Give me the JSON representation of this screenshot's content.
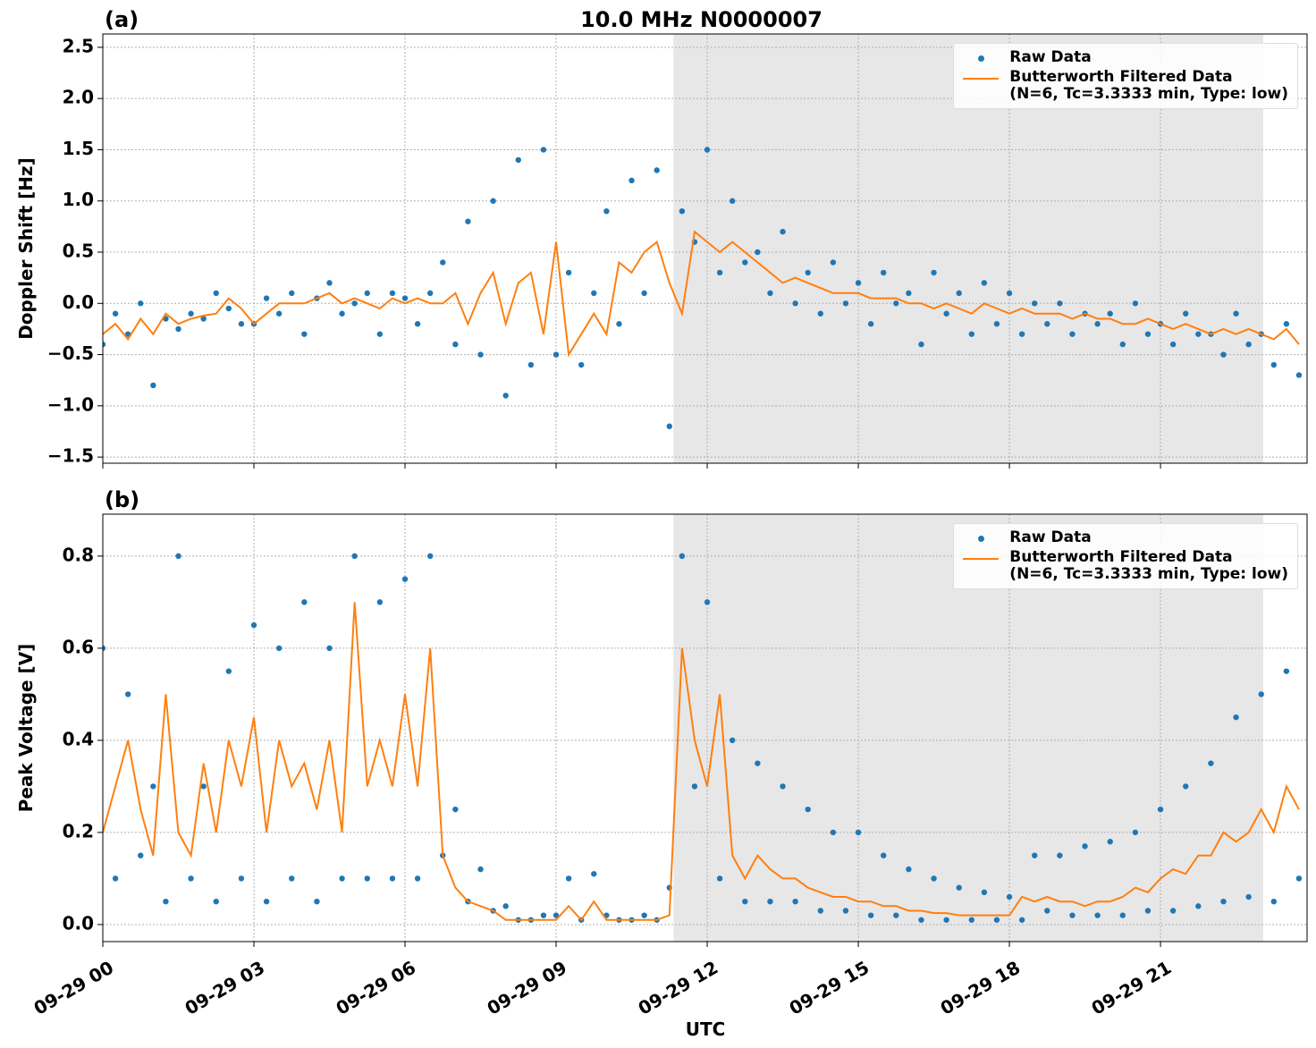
{
  "chart_data": [
    {
      "type": "scatter-line",
      "panel_label": "(a)",
      "title": "10.0 MHz N0000007",
      "ylabel": "Doppler Shift [Hz]",
      "xlim": [
        0,
        23.91
      ],
      "ylim": [
        -1.56,
        2.63
      ],
      "xticks": [
        0,
        3,
        6,
        9,
        12,
        15,
        18,
        21
      ],
      "yticks": [
        {
          "value": -1.5,
          "label": "−1.5"
        },
        {
          "value": -1.0,
          "label": "−1.0"
        },
        {
          "value": -0.5,
          "label": "−0.5"
        },
        {
          "value": 0.0,
          "label": "0.0"
        },
        0.5,
        {
          "value": 1.0,
          "label": "1.0"
        },
        1.5,
        {
          "value": 2.0,
          "label": "2.0"
        },
        2.5
      ],
      "grid": true,
      "shaded_span": [
        11.33,
        23.04
      ],
      "shade_color": "#e7e7e7",
      "legend": "upper right",
      "x": [
        0,
        0.25,
        0.5,
        0.75,
        1,
        1.25,
        1.5,
        1.75,
        2,
        2.25,
        2.5,
        2.75,
        3,
        3.25,
        3.5,
        3.75,
        4,
        4.25,
        4.5,
        4.75,
        5,
        5.25,
        5.5,
        5.75,
        6,
        6.25,
        6.5,
        6.75,
        7,
        7.25,
        7.5,
        7.75,
        8,
        8.25,
        8.5,
        8.75,
        9,
        9.25,
        9.5,
        9.75,
        10,
        10.25,
        10.5,
        10.75,
        11,
        11.25,
        11.5,
        11.75,
        12,
        12.25,
        12.5,
        12.75,
        13,
        13.25,
        13.5,
        13.75,
        14,
        14.25,
        14.5,
        14.75,
        15,
        15.25,
        15.5,
        15.75,
        16,
        16.25,
        16.5,
        16.75,
        17,
        17.25,
        17.5,
        17.75,
        18,
        18.25,
        18.5,
        18.75,
        19,
        19.25,
        19.5,
        19.75,
        20,
        20.25,
        20.5,
        20.75,
        21,
        21.25,
        21.5,
        21.75,
        22,
        22.25,
        22.5,
        22.75,
        23,
        23.25,
        23.5,
        23.75
      ],
      "series": [
        {
          "name": "Raw Data",
          "kind": "scatter",
          "color": "#1f77b4",
          "values": [
            -0.4,
            -0.1,
            -0.3,
            0.0,
            -0.8,
            -0.15,
            -0.25,
            -0.1,
            -0.15,
            0.1,
            -0.05,
            -0.2,
            -0.2,
            0.05,
            -0.1,
            0.1,
            -0.3,
            0.05,
            0.2,
            -0.1,
            0.0,
            0.1,
            -0.3,
            0.1,
            0.05,
            -0.2,
            0.1,
            0.4,
            -0.4,
            0.8,
            -0.5,
            1.0,
            -0.9,
            1.4,
            -0.6,
            1.5,
            -0.5,
            0.3,
            -0.6,
            0.1,
            0.9,
            -0.2,
            1.2,
            0.1,
            1.3,
            -1.2,
            0.9,
            0.6,
            1.5,
            0.3,
            1.0,
            0.4,
            0.5,
            0.1,
            0.7,
            0.0,
            0.3,
            -0.1,
            0.4,
            0.0,
            0.2,
            -0.2,
            0.3,
            0.0,
            0.1,
            -0.4,
            0.3,
            -0.1,
            0.1,
            -0.3,
            0.2,
            -0.2,
            0.1,
            -0.3,
            0.0,
            -0.2,
            0.0,
            -0.3,
            -0.1,
            -0.2,
            -0.1,
            -0.4,
            0.0,
            -0.3,
            -0.2,
            -0.4,
            -0.1,
            -0.3,
            -0.3,
            -0.5,
            -0.1,
            -0.4,
            -0.3,
            -0.6,
            -0.2,
            -0.7
          ]
        },
        {
          "name": "Butterworth Filtered Data\n(N=6, Tc=3.3333 min, Type: low)",
          "kind": "line",
          "color": "#ff7f0e",
          "values": [
            -0.3,
            -0.2,
            -0.35,
            -0.15,
            -0.3,
            -0.1,
            -0.2,
            -0.15,
            -0.12,
            -0.1,
            0.05,
            -0.05,
            -0.2,
            -0.1,
            0.0,
            0.0,
            0.0,
            0.05,
            0.1,
            0.0,
            0.05,
            0.0,
            -0.05,
            0.05,
            0.0,
            0.05,
            0.0,
            0.0,
            0.1,
            -0.2,
            0.1,
            0.3,
            -0.2,
            0.2,
            0.3,
            -0.3,
            0.6,
            -0.5,
            -0.3,
            -0.1,
            -0.3,
            0.4,
            0.3,
            0.5,
            0.6,
            0.2,
            -0.1,
            0.7,
            0.6,
            0.5,
            0.6,
            0.5,
            0.4,
            0.3,
            0.2,
            0.25,
            0.2,
            0.15,
            0.1,
            0.1,
            0.1,
            0.05,
            0.05,
            0.05,
            0.0,
            0.0,
            -0.05,
            0.0,
            -0.05,
            -0.1,
            0.0,
            -0.05,
            -0.1,
            -0.05,
            -0.1,
            -0.1,
            -0.1,
            -0.15,
            -0.1,
            -0.15,
            -0.15,
            -0.2,
            -0.2,
            -0.15,
            -0.2,
            -0.25,
            -0.2,
            -0.25,
            -0.3,
            -0.25,
            -0.3,
            -0.25,
            -0.3,
            -0.35,
            -0.25,
            -0.4
          ]
        }
      ]
    },
    {
      "type": "scatter-line",
      "panel_label": "(b)",
      "ylabel": "Peak Voltage [V]",
      "xlabel": "UTC",
      "xlim": [
        0,
        23.91
      ],
      "ylim": [
        -0.037,
        0.891
      ],
      "xticks": [
        {
          "value": 0,
          "label": "09-29 00"
        },
        {
          "value": 3,
          "label": "09-29 03"
        },
        {
          "value": 6,
          "label": "09-29 06"
        },
        {
          "value": 9,
          "label": "09-29 09"
        },
        {
          "value": 12,
          "label": "09-29 12"
        },
        {
          "value": 15,
          "label": "09-29 15"
        },
        {
          "value": 18,
          "label": "09-29 18"
        },
        {
          "value": 21,
          "label": "09-29 21"
        }
      ],
      "yticks": [
        {
          "value": 0.0,
          "label": "0.0"
        },
        0.2,
        0.4,
        0.6,
        0.8
      ],
      "grid": true,
      "shaded_span": [
        11.33,
        23.04
      ],
      "shade_color": "#e7e7e7",
      "legend": "upper right",
      "x": [
        0,
        0.25,
        0.5,
        0.75,
        1,
        1.25,
        1.5,
        1.75,
        2,
        2.25,
        2.5,
        2.75,
        3,
        3.25,
        3.5,
        3.75,
        4,
        4.25,
        4.5,
        4.75,
        5,
        5.25,
        5.5,
        5.75,
        6,
        6.25,
        6.5,
        6.75,
        7,
        7.25,
        7.5,
        7.75,
        8,
        8.25,
        8.5,
        8.75,
        9,
        9.25,
        9.5,
        9.75,
        10,
        10.25,
        10.5,
        10.75,
        11,
        11.25,
        11.5,
        11.75,
        12,
        12.25,
        12.5,
        12.75,
        13,
        13.25,
        13.5,
        13.75,
        14,
        14.25,
        14.5,
        14.75,
        15,
        15.25,
        15.5,
        15.75,
        16,
        16.25,
        16.5,
        16.75,
        17,
        17.25,
        17.5,
        17.75,
        18,
        18.25,
        18.5,
        18.75,
        19,
        19.25,
        19.5,
        19.75,
        20,
        20.25,
        20.5,
        20.75,
        21,
        21.25,
        21.5,
        21.75,
        22,
        22.25,
        22.5,
        22.75,
        23,
        23.25,
        23.5,
        23.75
      ],
      "series": [
        {
          "name": "Raw Data",
          "kind": "scatter",
          "color": "#1f77b4",
          "values": [
            0.6,
            0.1,
            0.5,
            0.15,
            0.3,
            0.05,
            0.8,
            0.1,
            0.3,
            0.05,
            0.55,
            0.1,
            0.65,
            0.05,
            0.6,
            0.1,
            0.7,
            0.05,
            0.6,
            0.1,
            0.8,
            0.1,
            0.7,
            0.1,
            0.75,
            0.1,
            0.8,
            0.15,
            0.25,
            0.05,
            0.12,
            0.03,
            0.04,
            0.01,
            0.01,
            0.02,
            0.02,
            0.1,
            0.01,
            0.11,
            0.02,
            0.01,
            0.01,
            0.02,
            0.01,
            0.08,
            0.8,
            0.3,
            0.7,
            0.1,
            0.4,
            0.05,
            0.35,
            0.05,
            0.3,
            0.05,
            0.25,
            0.03,
            0.2,
            0.03,
            0.2,
            0.02,
            0.15,
            0.02,
            0.12,
            0.01,
            0.1,
            0.01,
            0.08,
            0.01,
            0.07,
            0.01,
            0.06,
            0.01,
            0.15,
            0.03,
            0.15,
            0.02,
            0.17,
            0.02,
            0.18,
            0.02,
            0.2,
            0.03,
            0.25,
            0.03,
            0.3,
            0.04,
            0.35,
            0.05,
            0.45,
            0.06,
            0.5,
            0.05,
            0.55,
            0.1
          ]
        },
        {
          "name": "Butterworth Filtered Data\n(N=6, Tc=3.3333 min, Type: low)",
          "kind": "line",
          "color": "#ff7f0e",
          "values": [
            0.2,
            0.3,
            0.4,
            0.25,
            0.15,
            0.5,
            0.2,
            0.15,
            0.35,
            0.2,
            0.4,
            0.3,
            0.45,
            0.2,
            0.4,
            0.3,
            0.35,
            0.25,
            0.4,
            0.2,
            0.7,
            0.3,
            0.4,
            0.3,
            0.5,
            0.3,
            0.6,
            0.15,
            0.08,
            0.05,
            0.04,
            0.03,
            0.01,
            0.01,
            0.01,
            0.01,
            0.01,
            0.04,
            0.01,
            0.05,
            0.01,
            0.01,
            0.01,
            0.01,
            0.01,
            0.02,
            0.6,
            0.4,
            0.3,
            0.5,
            0.15,
            0.1,
            0.15,
            0.12,
            0.1,
            0.1,
            0.08,
            0.07,
            0.06,
            0.06,
            0.05,
            0.05,
            0.04,
            0.04,
            0.03,
            0.03,
            0.025,
            0.025,
            0.02,
            0.02,
            0.02,
            0.02,
            0.02,
            0.06,
            0.05,
            0.06,
            0.05,
            0.05,
            0.04,
            0.05,
            0.05,
            0.06,
            0.08,
            0.07,
            0.1,
            0.12,
            0.11,
            0.15,
            0.15,
            0.2,
            0.18,
            0.2,
            0.25,
            0.2,
            0.3,
            0.25
          ]
        }
      ]
    }
  ]
}
